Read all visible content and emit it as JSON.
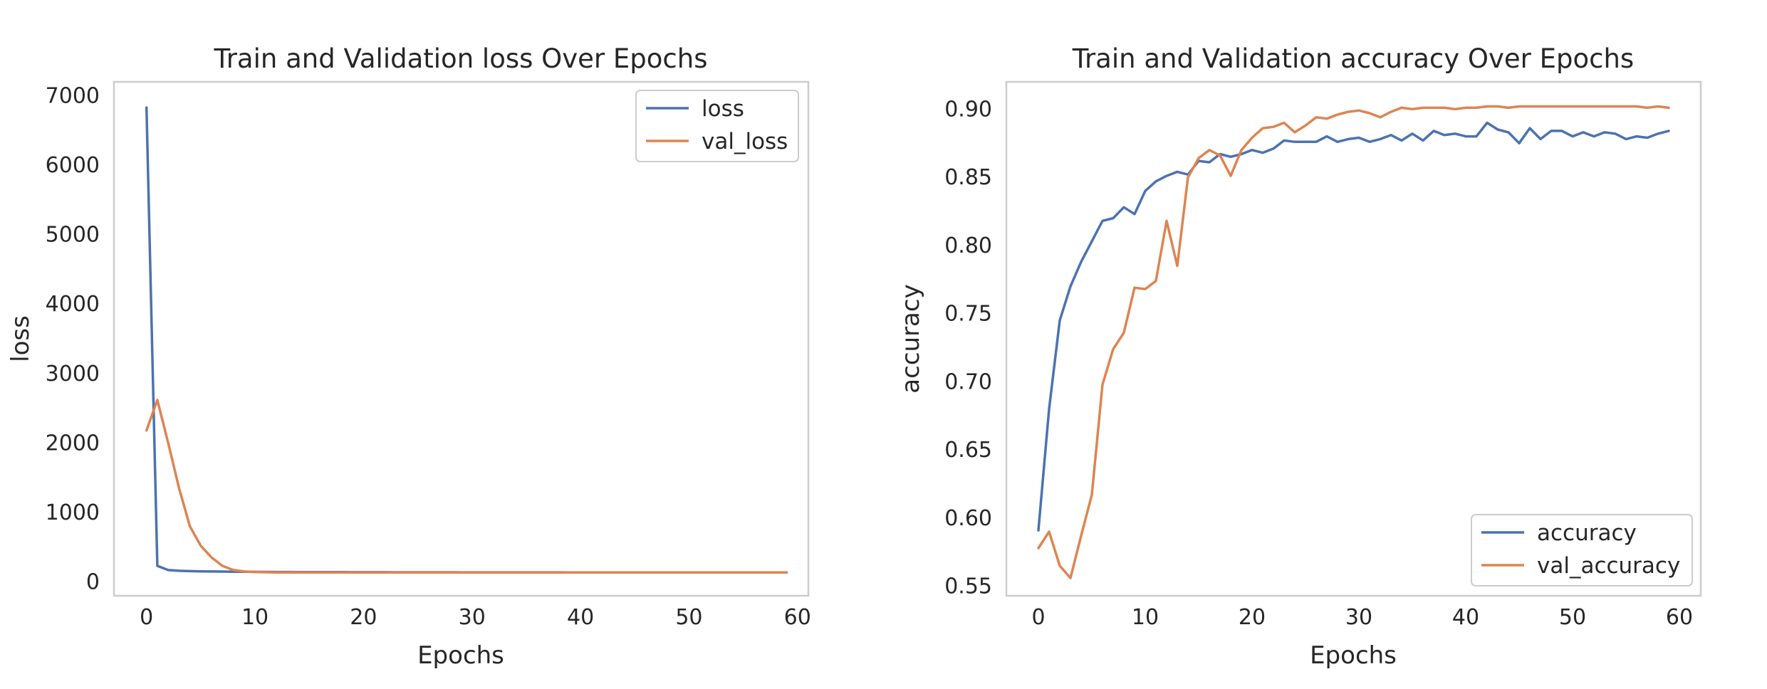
{
  "colors": {
    "train": "#4c72b0",
    "val": "#dd8452"
  },
  "chart_data": [
    {
      "type": "line",
      "title": "Train and Validation loss Over Epochs",
      "xlabel": "Epochs",
      "ylabel": "loss",
      "xlim": [
        -3,
        61
      ],
      "ylim": [
        -200,
        7200
      ],
      "xticks": [
        0,
        10,
        20,
        30,
        40,
        50,
        60
      ],
      "yticks": [
        0,
        1000,
        2000,
        3000,
        4000,
        5000,
        6000,
        7000
      ],
      "tick_decimals": 0,
      "grid": false,
      "legend": "upper right",
      "x": [
        0,
        1,
        2,
        3,
        4,
        5,
        6,
        7,
        8,
        9,
        10,
        11,
        12,
        13,
        14,
        15,
        16,
        17,
        18,
        19,
        20,
        21,
        22,
        23,
        24,
        25,
        26,
        27,
        28,
        29,
        30,
        31,
        32,
        33,
        34,
        35,
        36,
        37,
        38,
        39,
        40,
        41,
        42,
        43,
        44,
        45,
        46,
        47,
        48,
        49,
        50,
        51,
        52,
        53,
        54,
        55,
        56,
        57,
        58,
        59
      ],
      "series": [
        {
          "name": "loss",
          "color": "#4c72b0",
          "values": [
            6830,
            230,
            170,
            160,
            155,
            152,
            150,
            148,
            146,
            145,
            144,
            143,
            142,
            142,
            141,
            141,
            140,
            140,
            140,
            139,
            139,
            139,
            139,
            138,
            138,
            138,
            138,
            138,
            138,
            137,
            137,
            137,
            137,
            137,
            137,
            137,
            137,
            137,
            137,
            136,
            136,
            136,
            136,
            136,
            136,
            136,
            136,
            136,
            136,
            136,
            136,
            136,
            136,
            136,
            136,
            136,
            136,
            136,
            136,
            136
          ]
        },
        {
          "name": "val_loss",
          "color": "#dd8452",
          "values": [
            2180,
            2620,
            2000,
            1350,
            800,
            520,
            350,
            230,
            170,
            150,
            142,
            138,
            136,
            135,
            135,
            135,
            135,
            135,
            135,
            135,
            135,
            135,
            135,
            135,
            135,
            135,
            135,
            135,
            135,
            135,
            135,
            135,
            135,
            135,
            135,
            135,
            135,
            135,
            135,
            135,
            135,
            135,
            135,
            135,
            135,
            135,
            135,
            135,
            135,
            135,
            135,
            135,
            135,
            135,
            135,
            135,
            135,
            135,
            135,
            135
          ]
        }
      ]
    },
    {
      "type": "line",
      "title": "Train and Validation accuracy Over Epochs",
      "xlabel": "Epochs",
      "ylabel": "accuracy",
      "xlim": [
        -3,
        62
      ],
      "ylim": [
        0.543,
        0.92
      ],
      "xticks": [
        0,
        10,
        20,
        30,
        40,
        50,
        60
      ],
      "yticks": [
        0.55,
        0.6,
        0.65,
        0.7,
        0.75,
        0.8,
        0.85,
        0.9
      ],
      "tick_decimals": 2,
      "grid": false,
      "legend": "lower right",
      "x": [
        0,
        1,
        2,
        3,
        4,
        5,
        6,
        7,
        8,
        9,
        10,
        11,
        12,
        13,
        14,
        15,
        16,
        17,
        18,
        19,
        20,
        21,
        22,
        23,
        24,
        25,
        26,
        27,
        28,
        29,
        30,
        31,
        32,
        33,
        34,
        35,
        36,
        37,
        38,
        39,
        40,
        41,
        42,
        43,
        44,
        45,
        46,
        47,
        48,
        49,
        50,
        51,
        52,
        53,
        54,
        55,
        56,
        57,
        58,
        59
      ],
      "series": [
        {
          "name": "accuracy",
          "color": "#4c72b0",
          "values": [
            0.591,
            0.68,
            0.745,
            0.77,
            0.788,
            0.803,
            0.818,
            0.82,
            0.828,
            0.823,
            0.84,
            0.847,
            0.851,
            0.854,
            0.852,
            0.862,
            0.861,
            0.867,
            0.865,
            0.867,
            0.87,
            0.868,
            0.871,
            0.877,
            0.876,
            0.876,
            0.876,
            0.88,
            0.876,
            0.878,
            0.879,
            0.876,
            0.878,
            0.881,
            0.877,
            0.882,
            0.877,
            0.884,
            0.881,
            0.882,
            0.88,
            0.88,
            0.89,
            0.885,
            0.883,
            0.875,
            0.886,
            0.878,
            0.884,
            0.884,
            0.88,
            0.883,
            0.88,
            0.883,
            0.882,
            0.878,
            0.88,
            0.879,
            0.882,
            0.884
          ]
        },
        {
          "name": "val_accuracy",
          "color": "#dd8452",
          "values": [
            0.578,
            0.59,
            0.565,
            0.556,
            0.587,
            0.617,
            0.698,
            0.724,
            0.736,
            0.769,
            0.768,
            0.774,
            0.818,
            0.785,
            0.85,
            0.864,
            0.87,
            0.866,
            0.851,
            0.87,
            0.879,
            0.886,
            0.887,
            0.89,
            0.883,
            0.888,
            0.894,
            0.893,
            0.896,
            0.898,
            0.899,
            0.897,
            0.894,
            0.898,
            0.901,
            0.9,
            0.901,
            0.901,
            0.901,
            0.9,
            0.901,
            0.901,
            0.902,
            0.902,
            0.901,
            0.902,
            0.902,
            0.902,
            0.902,
            0.902,
            0.902,
            0.902,
            0.902,
            0.902,
            0.902,
            0.902,
            0.902,
            0.901,
            0.902,
            0.901
          ]
        }
      ]
    }
  ]
}
